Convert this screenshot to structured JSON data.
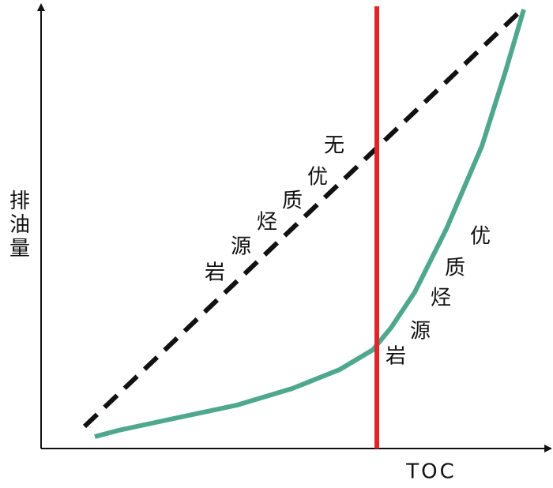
{
  "y_axis_label": "排油量",
  "x_axis_label": "TOC",
  "dashed_line_label": [
    "无",
    "优",
    "质",
    "烃",
    "源",
    "岩"
  ],
  "curve_label": [
    "优",
    "质",
    "烃",
    "源",
    "岩"
  ]
}
